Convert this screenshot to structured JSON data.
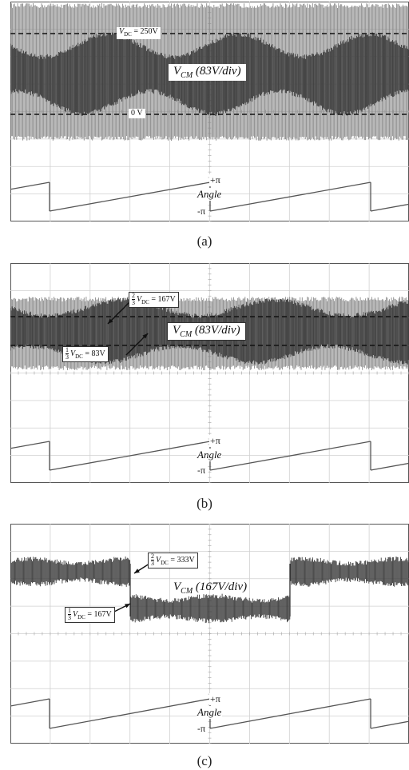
{
  "chart_data": [
    {
      "type": "line",
      "caption": "(a)",
      "title_main": "V",
      "title_sub": "CM",
      "title_rest": " (83V/div)",
      "levels": [
        {
          "label_main": "V",
          "label_sub": "DC",
          "label_rest": " = 250V",
          "frac": ""
        },
        {
          "label_main": "0 V",
          "label_sub": "",
          "label_rest": "",
          "frac": ""
        }
      ],
      "angle_axis": {
        "label": "Angle",
        "max_label": "+π",
        "min_label": "-π"
      },
      "envelope": "full-band noise between 0 V and 250 V"
    },
    {
      "type": "line",
      "caption": "(b)",
      "title_main": "V",
      "title_sub": "CM",
      "title_rest": " (83V/div)",
      "levels": [
        {
          "frac_num": "2",
          "frac_den": "3",
          "label_main": "V",
          "label_sub": "DC",
          "label_rest": " = 167V"
        },
        {
          "frac_num": "1",
          "frac_den": "3",
          "label_main": "V",
          "label_sub": "DC",
          "label_rest": " = 83V"
        }
      ],
      "angle_axis": {
        "label": "Angle",
        "max_label": "+π",
        "min_label": "-π"
      }
    },
    {
      "type": "line",
      "caption": "(c)",
      "title_main": "V",
      "title_sub": "CM",
      "title_rest": " (167V/div)",
      "levels": [
        {
          "frac_num": "2",
          "frac_den": "3",
          "label_main": "V",
          "label_sub": "DC",
          "label_rest": " = 333V"
        },
        {
          "frac_num": "1",
          "frac_den": "3",
          "label_main": "V",
          "label_sub": "DC",
          "label_rest": " = 167V"
        }
      ],
      "angle_axis": {
        "label": "Angle",
        "max_label": "+π",
        "min_label": "-π"
      }
    }
  ]
}
